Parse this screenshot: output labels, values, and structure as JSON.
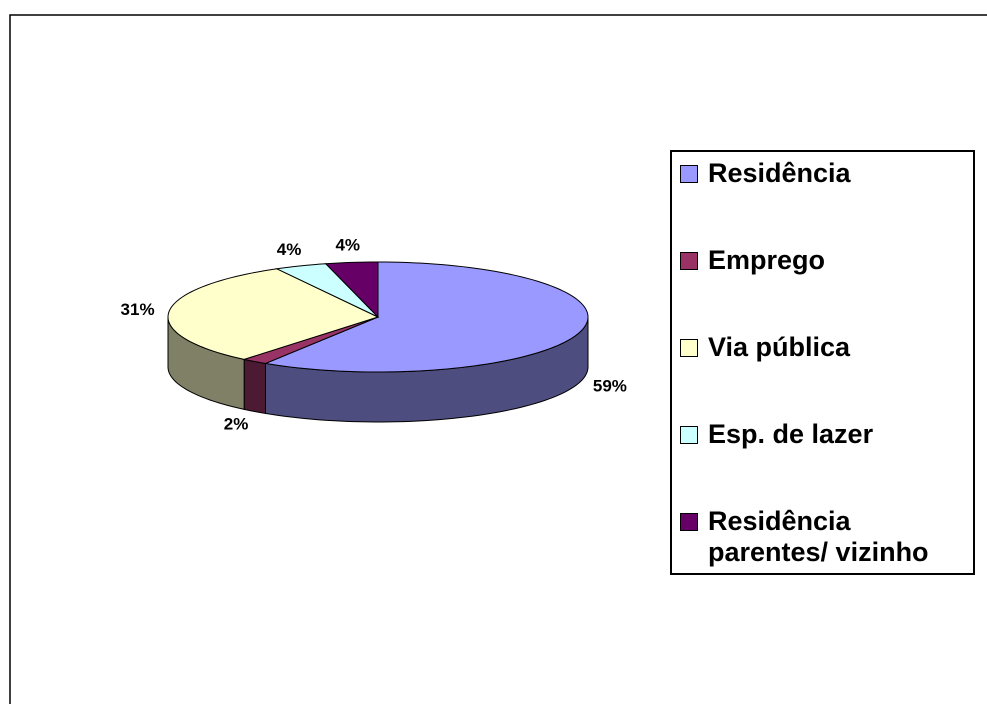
{
  "chart_data": {
    "type": "pie",
    "categories": [
      "Residência",
      "Emprego",
      "Via pública",
      "Esp. de lazer",
      "Residência parentes/ vizinho"
    ],
    "values": [
      59,
      2,
      31,
      4,
      4
    ],
    "value_labels": [
      "59%",
      "2%",
      "31%",
      "4%",
      "4%"
    ],
    "colors": [
      "#9999ff",
      "#993366",
      "#ffffcc",
      "#ccffff",
      "#660066"
    ],
    "legend": "right"
  }
}
